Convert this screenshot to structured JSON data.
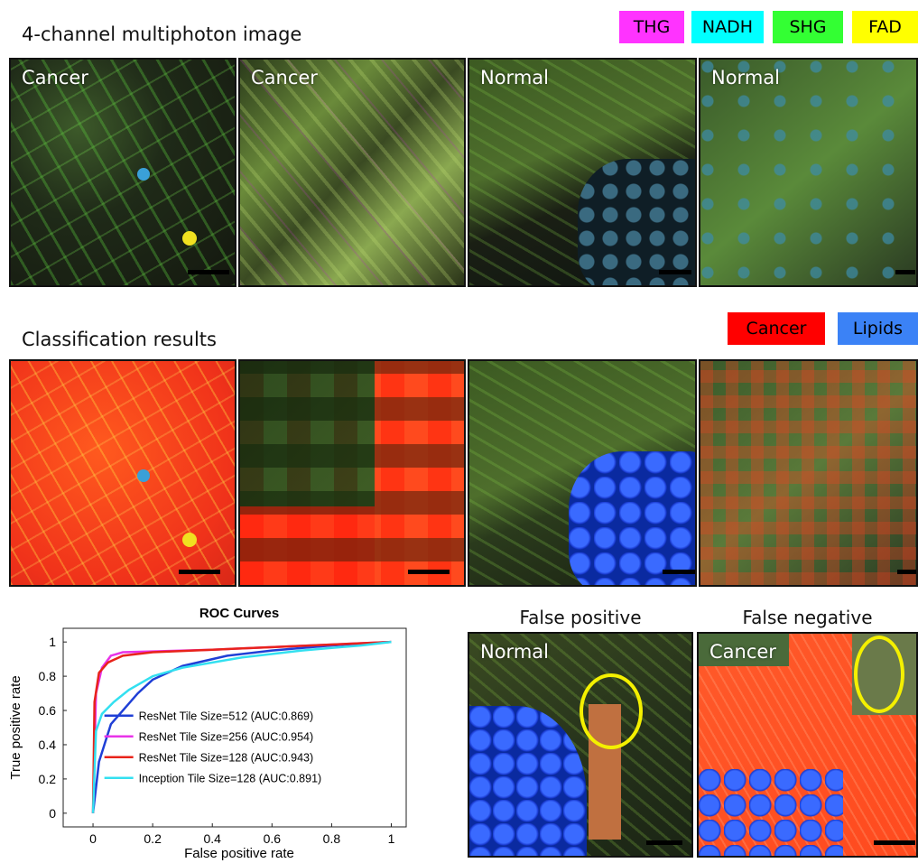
{
  "figure": {
    "row1_title": "4-channel multiphoton image",
    "row2_title": "Classification results",
    "channel_legend": [
      {
        "label": "THG",
        "bg": "#ff33ff",
        "fg": "#000000"
      },
      {
        "label": "NADH",
        "bg": "#00ffff",
        "fg": "#000000"
      },
      {
        "label": "SHG",
        "bg": "#33ff33",
        "fg": "#000000"
      },
      {
        "label": "FAD",
        "bg": "#ffff00",
        "fg": "#000000"
      }
    ],
    "class_legend": [
      {
        "label": "Cancer",
        "bg": "#ff0000",
        "fg": "#000000"
      },
      {
        "label": "Lipids",
        "bg": "#3b82f6",
        "fg": "#000000"
      }
    ],
    "row1_panels": [
      "Cancer",
      "Cancer",
      "Normal",
      "Normal"
    ],
    "fp_caption": "False positive",
    "fn_caption": "False negative",
    "fp_label": "Normal",
    "fn_label": "Cancer"
  },
  "chart_data": {
    "type": "line",
    "title": "ROC Curves",
    "xlabel": "False positive rate",
    "ylabel": "True positive rate",
    "xlim": [
      -0.1,
      1.05
    ],
    "ylim": [
      -0.08,
      1.08
    ],
    "xticks": [
      0,
      0.2,
      0.4,
      0.6,
      0.8,
      1
    ],
    "xtick_labels": [
      "0",
      "0.2",
      "0.4",
      "0.6",
      "0.8",
      "1"
    ],
    "yticks": [
      0,
      0.2,
      0.4,
      0.6,
      0.8,
      1
    ],
    "ytick_labels": [
      "0",
      "0.2",
      "0.4",
      "0.6",
      "0.8",
      "1"
    ],
    "legend_position": "bottom-right",
    "series": [
      {
        "name": "ResNet Tile Size=512 (AUC:0.869)",
        "color": "#1f3fd6",
        "x": [
          0,
          0.02,
          0.06,
          0.1,
          0.15,
          0.2,
          0.3,
          0.45,
          0.6,
          0.8,
          1.0
        ],
        "y": [
          0,
          0.3,
          0.52,
          0.6,
          0.7,
          0.78,
          0.86,
          0.92,
          0.95,
          0.98,
          1.0
        ]
      },
      {
        "name": "ResNet Tile Size=256 (AUC:0.954)",
        "color": "#e833e8",
        "x": [
          0,
          0.01,
          0.03,
          0.06,
          0.1,
          0.2,
          0.4,
          0.6,
          0.8,
          1.0
        ],
        "y": [
          0,
          0.7,
          0.85,
          0.92,
          0.94,
          0.945,
          0.955,
          0.97,
          0.985,
          1.0
        ]
      },
      {
        "name": "ResNet Tile Size=128 (AUC:0.943)",
        "color": "#e8231a",
        "x": [
          0,
          0.005,
          0.02,
          0.05,
          0.1,
          0.2,
          0.4,
          0.6,
          0.8,
          1.0
        ],
        "y": [
          0,
          0.65,
          0.82,
          0.88,
          0.92,
          0.94,
          0.955,
          0.97,
          0.985,
          1.0
        ]
      },
      {
        "name": "Inception Tile Size=128 (AUC:0.891)",
        "color": "#33e0f0",
        "x": [
          0,
          0.01,
          0.03,
          0.07,
          0.12,
          0.2,
          0.3,
          0.5,
          0.7,
          0.9,
          1.0
        ],
        "y": [
          0,
          0.48,
          0.58,
          0.65,
          0.72,
          0.8,
          0.85,
          0.91,
          0.95,
          0.98,
          1.0
        ]
      }
    ]
  }
}
